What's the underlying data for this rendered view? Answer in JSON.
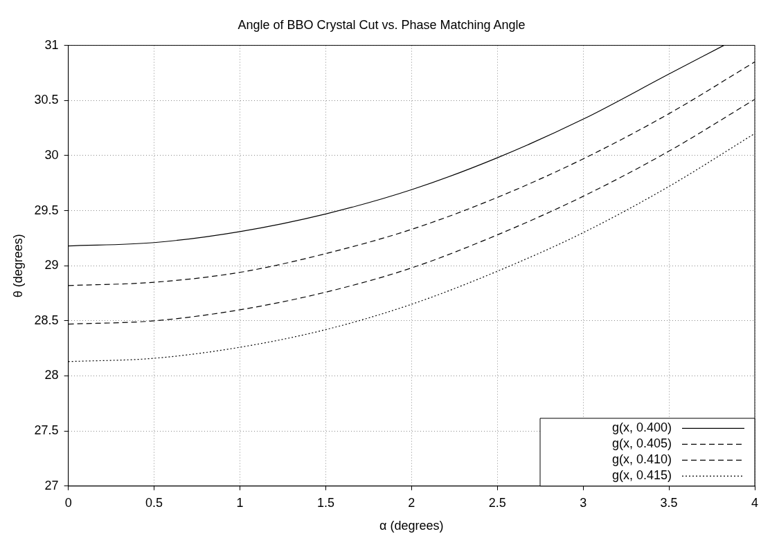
{
  "chart_data": {
    "type": "line",
    "title": "Angle of BBO Crystal Cut vs. Phase Matching Angle",
    "xlabel": "α (degrees)",
    "ylabel": "θ (degrees)",
    "x": [
      0,
      0.5,
      1,
      1.5,
      2,
      2.5,
      3,
      3.5,
      4
    ],
    "series": [
      {
        "name": "g(x, 0.400)",
        "color": "#000000",
        "line_style": "solid",
        "x": [
          0,
          0.5,
          1,
          1.5,
          2,
          2.5,
          3,
          3.5,
          3.82
        ],
        "values": [
          29.18,
          29.21,
          29.31,
          29.47,
          29.69,
          29.98,
          30.33,
          30.74,
          31.0
        ]
      },
      {
        "name": "g(x, 0.405)",
        "color": "#000000",
        "line_style": "dashed",
        "values": [
          28.82,
          28.85,
          28.94,
          29.11,
          29.33,
          29.62,
          29.97,
          30.38,
          30.85
        ]
      },
      {
        "name": "g(x, 0.410)",
        "color": "#000000",
        "line_style": "dashed",
        "values": [
          28.47,
          28.5,
          28.6,
          28.76,
          28.98,
          29.28,
          29.63,
          30.04,
          30.51
        ]
      },
      {
        "name": "g(x, 0.415)",
        "color": "#000000",
        "line_style": "dotted",
        "values": [
          28.13,
          28.16,
          28.26,
          28.42,
          28.65,
          28.95,
          29.3,
          29.72,
          30.2
        ]
      }
    ],
    "xlim": [
      0,
      4
    ],
    "xticks": [
      0,
      0.5,
      1,
      1.5,
      2,
      2.5,
      3,
      3.5,
      4
    ],
    "ylim": [
      27,
      31
    ],
    "yticks": [
      27,
      27.5,
      28,
      28.5,
      29,
      29.5,
      30,
      30.5,
      31
    ],
    "grid": true,
    "legend": "bottom right",
    "marker": "none"
  }
}
